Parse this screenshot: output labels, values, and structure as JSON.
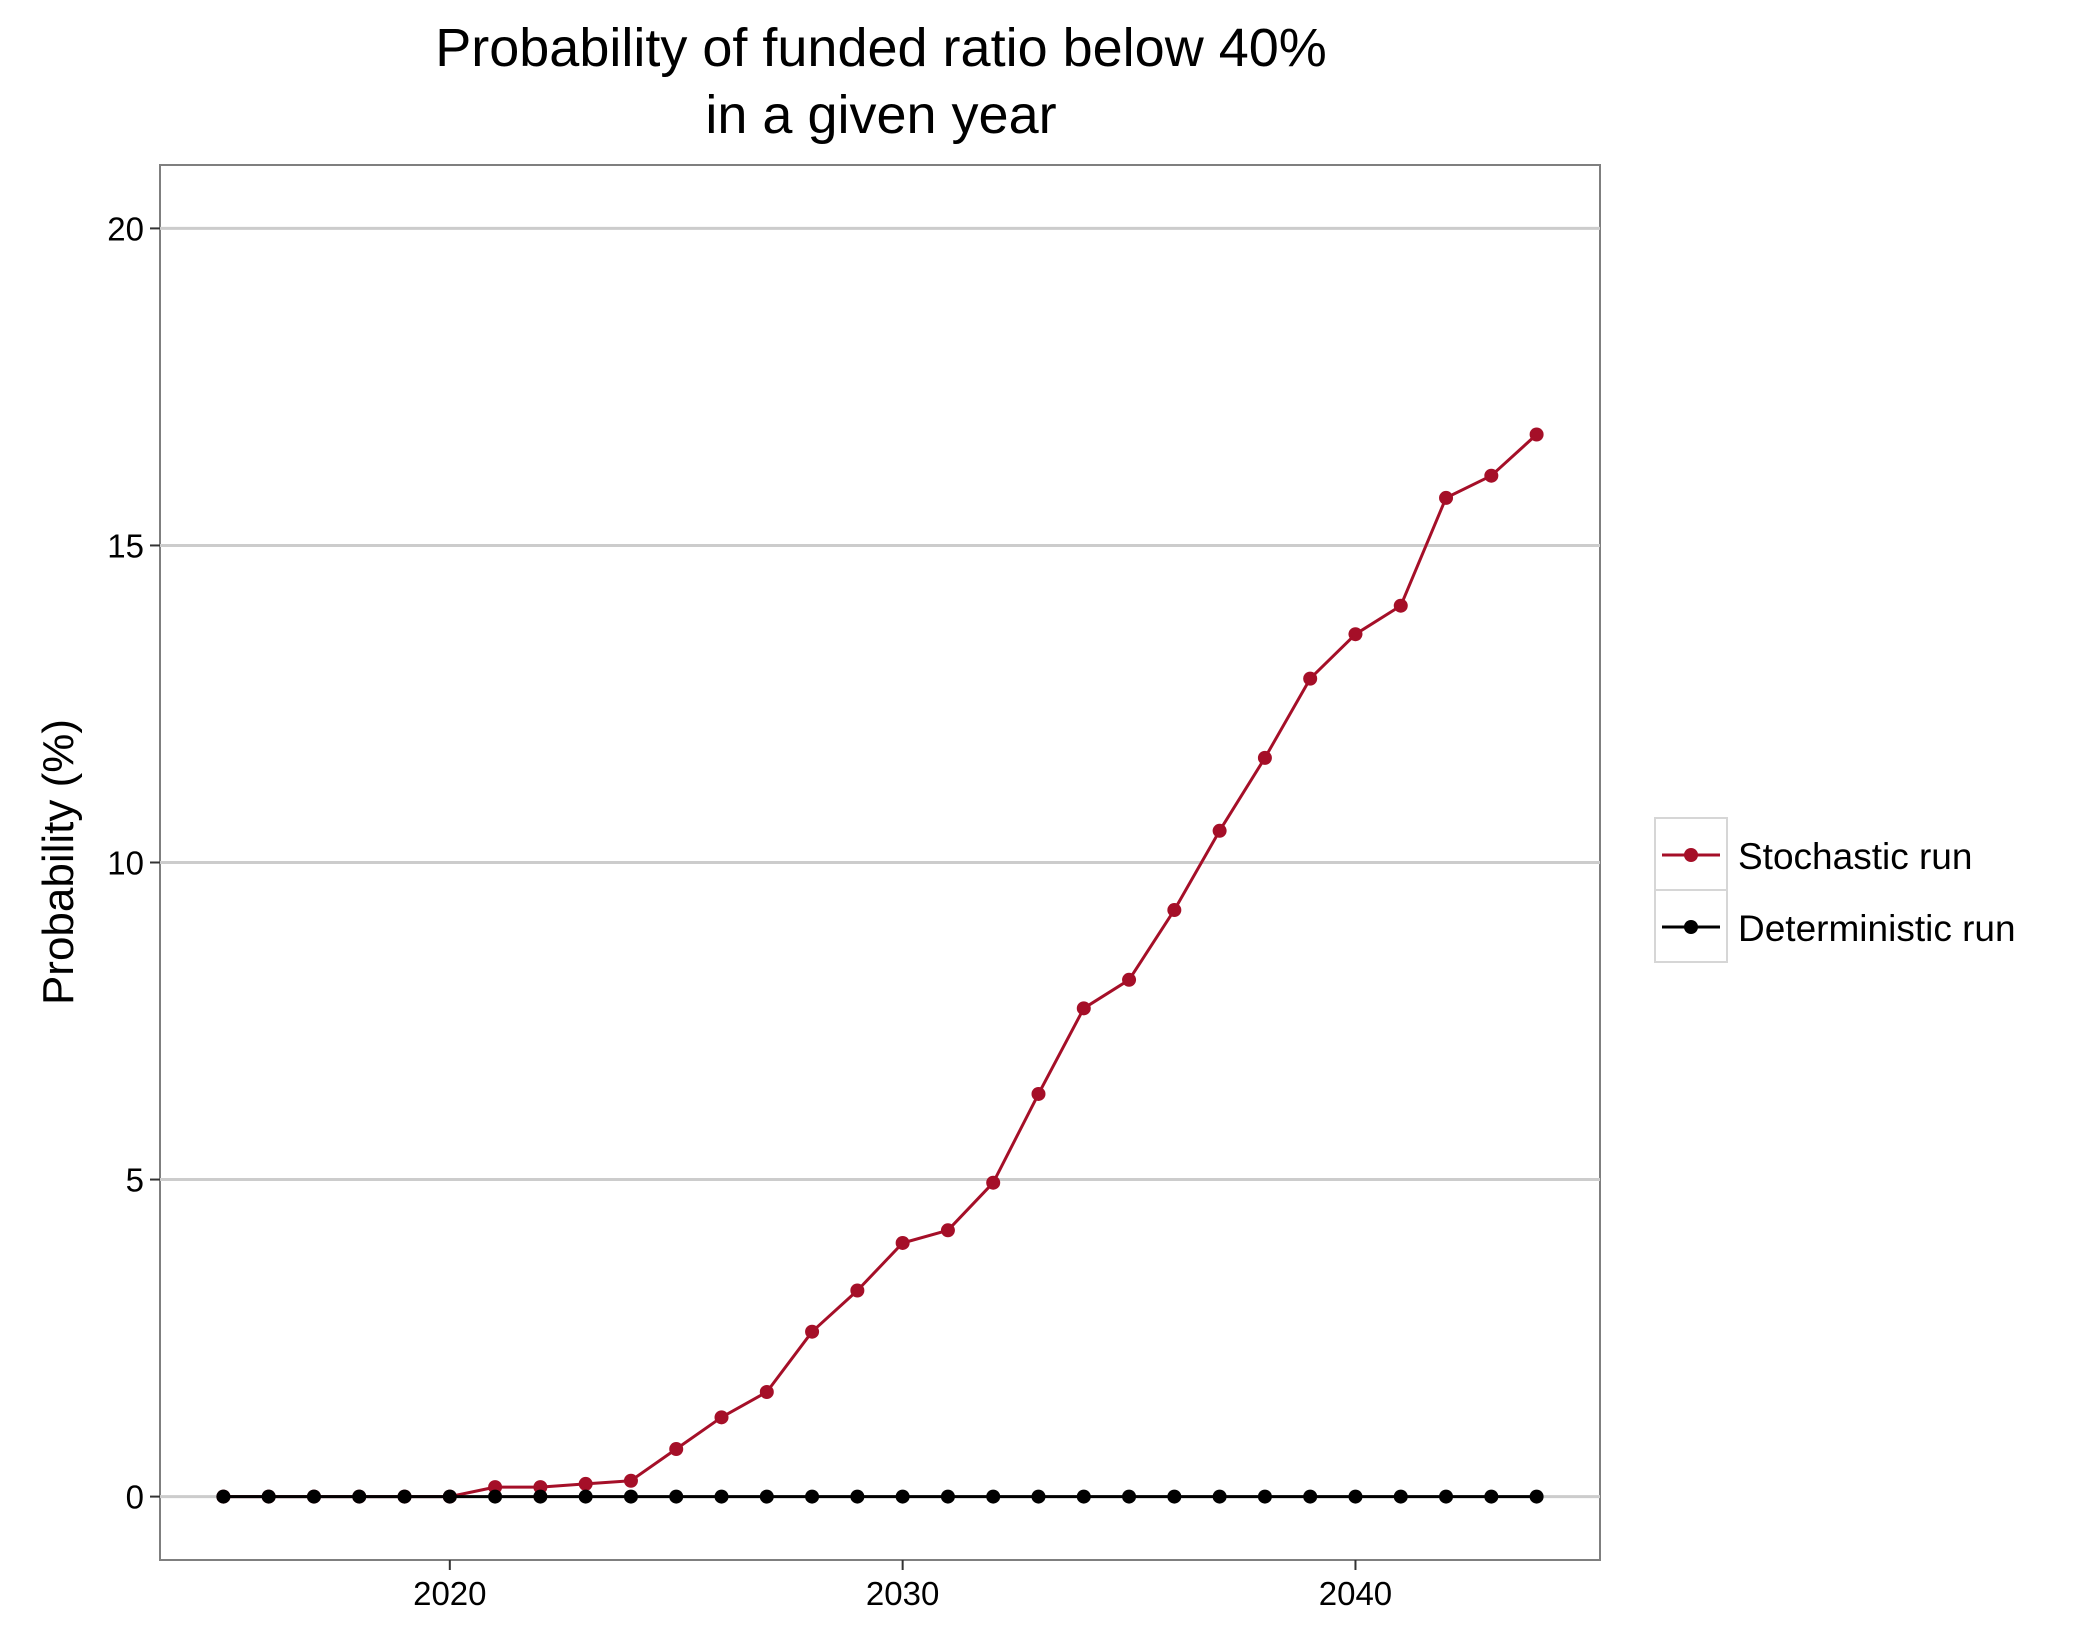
{
  "chart_data": {
    "type": "line",
    "title": [
      "Probability of funded ratio below 40%",
      "in a given year"
    ],
    "xlabel": "",
    "ylabel": "Probability (%)",
    "xlim": [
      2013.6,
      2045.4
    ],
    "ylim": [
      -1.0,
      21.0
    ],
    "xticks": [
      2020,
      2030,
      2040
    ],
    "yticks": [
      0,
      5,
      10,
      15,
      20
    ],
    "grid": "horizontal",
    "legend_position": "right",
    "x": [
      2015,
      2016,
      2017,
      2018,
      2019,
      2020,
      2021,
      2022,
      2023,
      2024,
      2025,
      2026,
      2027,
      2028,
      2029,
      2030,
      2031,
      2032,
      2033,
      2034,
      2035,
      2036,
      2037,
      2038,
      2039,
      2040,
      2041,
      2042,
      2043,
      2044
    ],
    "series": [
      {
        "name": "Stochastic run",
        "color": "#a50f28",
        "values": [
          0,
          0,
          0,
          0,
          0,
          0,
          0.15,
          0.15,
          0.2,
          0.25,
          0.75,
          1.25,
          1.65,
          2.6,
          3.25,
          4.0,
          4.2,
          4.95,
          6.35,
          7.7,
          8.15,
          9.25,
          10.5,
          11.65,
          12.9,
          13.6,
          14.05,
          15.75,
          16.1,
          16.75
        ]
      },
      {
        "name": "Deterministic run",
        "color": "#000000",
        "values": [
          0,
          0,
          0,
          0,
          0,
          0,
          0,
          0,
          0,
          0,
          0,
          0,
          0,
          0,
          0,
          0,
          0,
          0,
          0,
          0,
          0,
          0,
          0,
          0,
          0,
          0,
          0,
          0,
          0,
          0
        ]
      }
    ]
  }
}
